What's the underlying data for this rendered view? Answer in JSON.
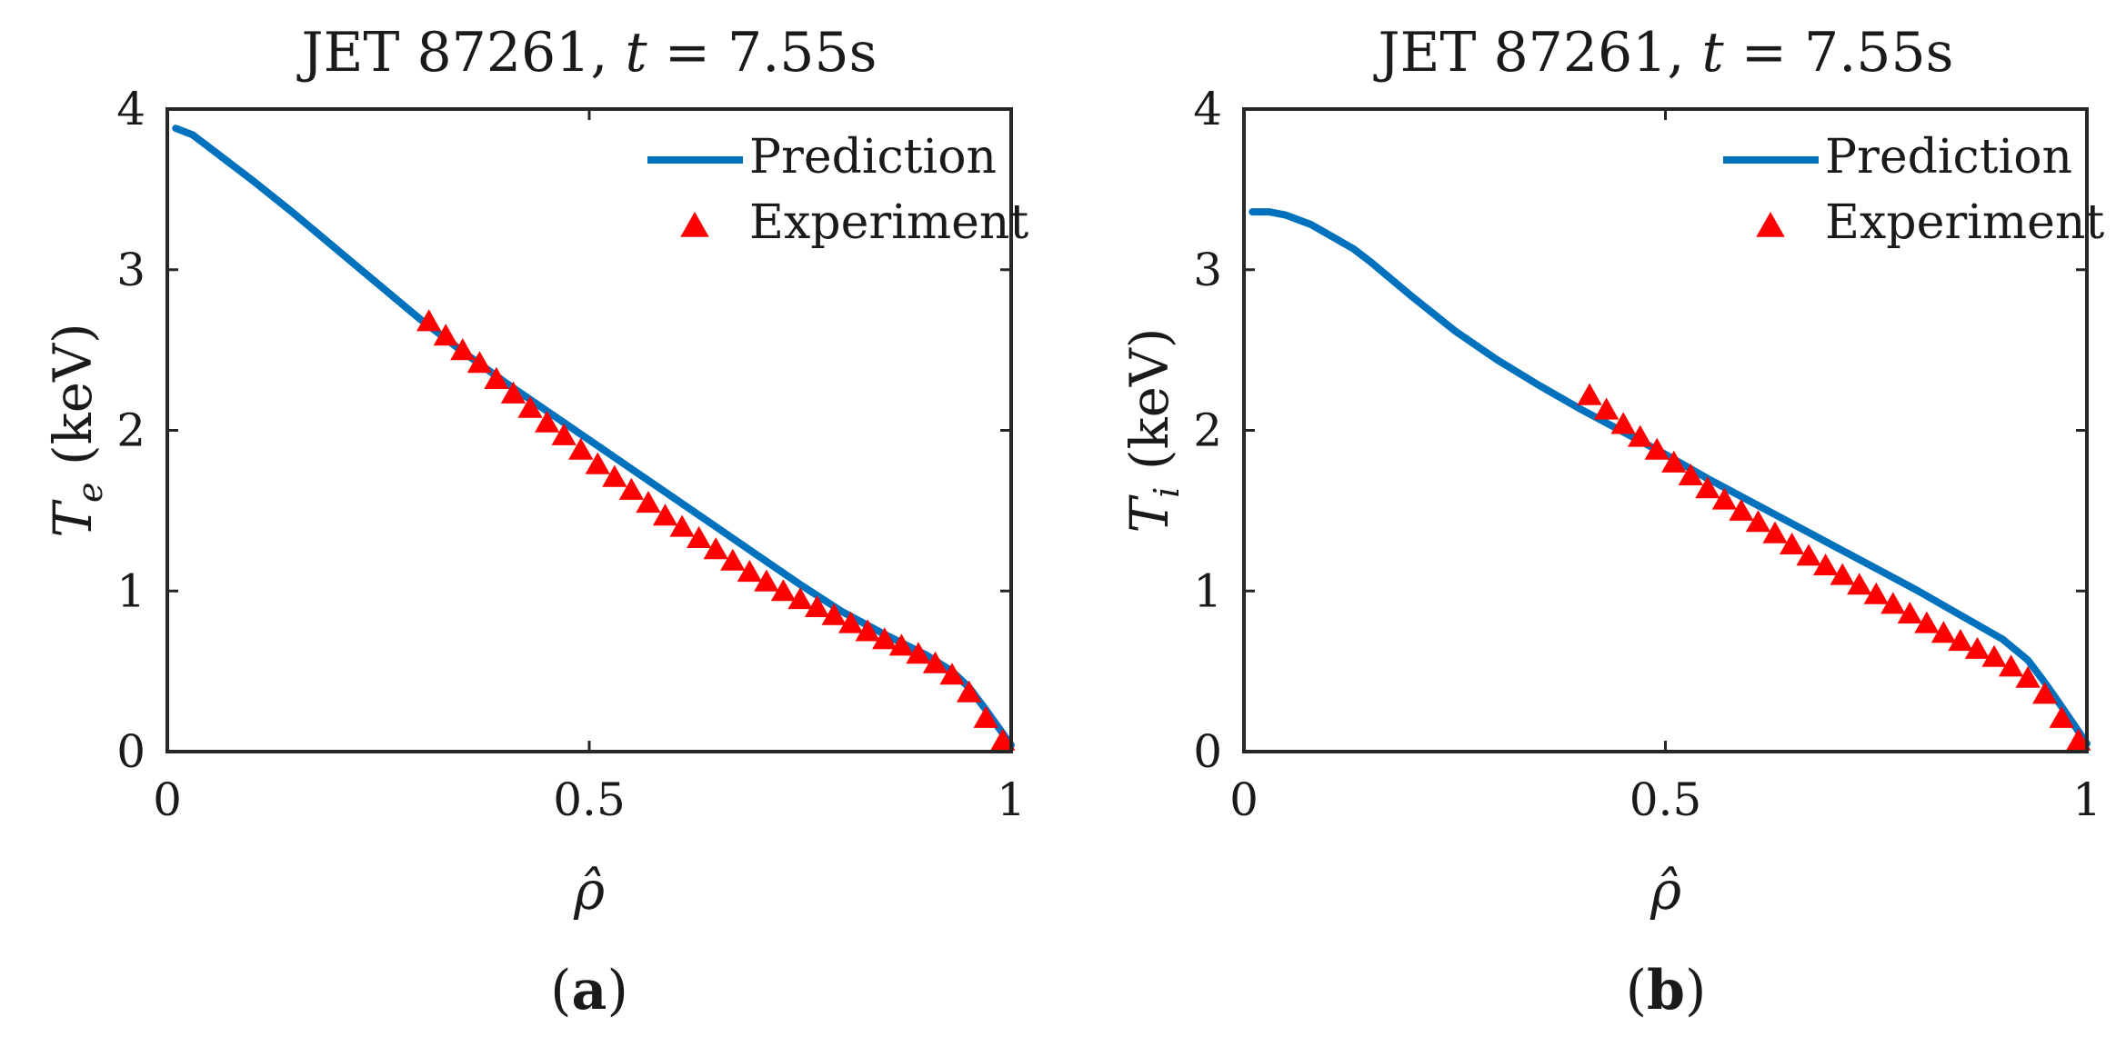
{
  "chart_data": [
    {
      "type": "line",
      "panel": "(a)",
      "title": "JET 87261, t = 7.55s",
      "title_parts": {
        "prefix": "JET 87261, ",
        "var": "t",
        "suffix": " = 7.55s"
      },
      "xlabel": "ρ̂",
      "ylabel": "T",
      "ylabel_subscript": "e",
      "ylabel_unit": " (keV)",
      "xlim": [
        0,
        1
      ],
      "ylim": [
        0,
        4
      ],
      "xticks": [
        0,
        0.5,
        1
      ],
      "xtick_labels": [
        "0",
        "0.5",
        "1"
      ],
      "yticks": [
        0,
        1,
        2,
        3,
        4
      ],
      "ytick_labels": [
        "0",
        "1",
        "2",
        "3",
        "4"
      ],
      "legend": {
        "location": "top-right",
        "entries": [
          "Prediction",
          "Experiment"
        ]
      },
      "series": [
        {
          "name": "Prediction",
          "style": "line",
          "color": "#0072BD",
          "x": [
            0.01,
            0.03,
            0.05,
            0.1,
            0.15,
            0.2,
            0.25,
            0.3,
            0.35,
            0.4,
            0.45,
            0.5,
            0.55,
            0.6,
            0.65,
            0.7,
            0.75,
            0.8,
            0.85,
            0.9,
            0.93,
            0.95,
            0.97,
            1.0
          ],
          "y": [
            3.88,
            3.84,
            3.76,
            3.56,
            3.35,
            3.13,
            2.91,
            2.69,
            2.49,
            2.3,
            2.12,
            1.94,
            1.76,
            1.58,
            1.4,
            1.22,
            1.04,
            0.87,
            0.73,
            0.6,
            0.5,
            0.4,
            0.26,
            0.04
          ]
        },
        {
          "name": "Experiment",
          "style": "marker",
          "marker": "triangle-up",
          "color": "#FF0000",
          "x": [
            0.31,
            0.33,
            0.35,
            0.37,
            0.39,
            0.41,
            0.43,
            0.45,
            0.47,
            0.49,
            0.51,
            0.53,
            0.55,
            0.57,
            0.59,
            0.61,
            0.63,
            0.65,
            0.67,
            0.69,
            0.71,
            0.73,
            0.75,
            0.77,
            0.79,
            0.81,
            0.83,
            0.85,
            0.87,
            0.89,
            0.91,
            0.93,
            0.95,
            0.97,
            0.99
          ],
          "y": [
            2.68,
            2.59,
            2.5,
            2.42,
            2.32,
            2.23,
            2.14,
            2.05,
            1.97,
            1.88,
            1.79,
            1.71,
            1.63,
            1.55,
            1.47,
            1.4,
            1.33,
            1.26,
            1.19,
            1.12,
            1.06,
            1.0,
            0.95,
            0.9,
            0.85,
            0.8,
            0.75,
            0.7,
            0.66,
            0.61,
            0.55,
            0.48,
            0.37,
            0.21,
            0.07
          ]
        }
      ]
    },
    {
      "type": "line",
      "panel": "(b)",
      "title": "JET 87261, t = 7.55s",
      "title_parts": {
        "prefix": "JET 87261, ",
        "var": "t",
        "suffix": " = 7.55s"
      },
      "xlabel": "ρ̂",
      "ylabel": "T",
      "ylabel_subscript": "i",
      "ylabel_unit": " (keV)",
      "xlim": [
        0,
        1
      ],
      "ylim": [
        0,
        4
      ],
      "xticks": [
        0,
        0.5,
        1
      ],
      "xtick_labels": [
        "0",
        "0.5",
        "1"
      ],
      "yticks": [
        0,
        1,
        2,
        3,
        4
      ],
      "ytick_labels": [
        "0",
        "1",
        "2",
        "3",
        "4"
      ],
      "legend": {
        "location": "top-right",
        "entries": [
          "Prediction",
          "Experiment"
        ]
      },
      "series": [
        {
          "name": "Prediction",
          "style": "line",
          "color": "#0072BD",
          "x": [
            0.01,
            0.03,
            0.05,
            0.08,
            0.1,
            0.13,
            0.15,
            0.2,
            0.25,
            0.3,
            0.35,
            0.4,
            0.45,
            0.5,
            0.55,
            0.6,
            0.65,
            0.7,
            0.75,
            0.8,
            0.85,
            0.9,
            0.93,
            0.95,
            0.97,
            1.0
          ],
          "y": [
            3.36,
            3.36,
            3.34,
            3.28,
            3.22,
            3.13,
            3.05,
            2.83,
            2.62,
            2.44,
            2.28,
            2.13,
            1.99,
            1.85,
            1.7,
            1.56,
            1.42,
            1.28,
            1.14,
            1.0,
            0.85,
            0.7,
            0.57,
            0.43,
            0.28,
            0.05
          ]
        },
        {
          "name": "Experiment",
          "style": "marker",
          "marker": "triangle-up",
          "color": "#FF0000",
          "x": [
            0.41,
            0.43,
            0.45,
            0.47,
            0.49,
            0.51,
            0.53,
            0.55,
            0.57,
            0.59,
            0.61,
            0.63,
            0.65,
            0.67,
            0.69,
            0.71,
            0.73,
            0.75,
            0.77,
            0.79,
            0.81,
            0.83,
            0.85,
            0.87,
            0.89,
            0.91,
            0.93,
            0.95,
            0.97,
            0.99
          ],
          "y": [
            2.22,
            2.13,
            2.04,
            1.96,
            1.88,
            1.8,
            1.72,
            1.64,
            1.57,
            1.5,
            1.43,
            1.36,
            1.29,
            1.22,
            1.16,
            1.1,
            1.04,
            0.98,
            0.92,
            0.86,
            0.8,
            0.74,
            0.69,
            0.64,
            0.59,
            0.53,
            0.46,
            0.36,
            0.21,
            0.07
          ]
        }
      ]
    }
  ],
  "captions": [
    {
      "open": "(",
      "letter": "a",
      "close": ")"
    },
    {
      "open": "(",
      "letter": "b",
      "close": ")"
    }
  ]
}
